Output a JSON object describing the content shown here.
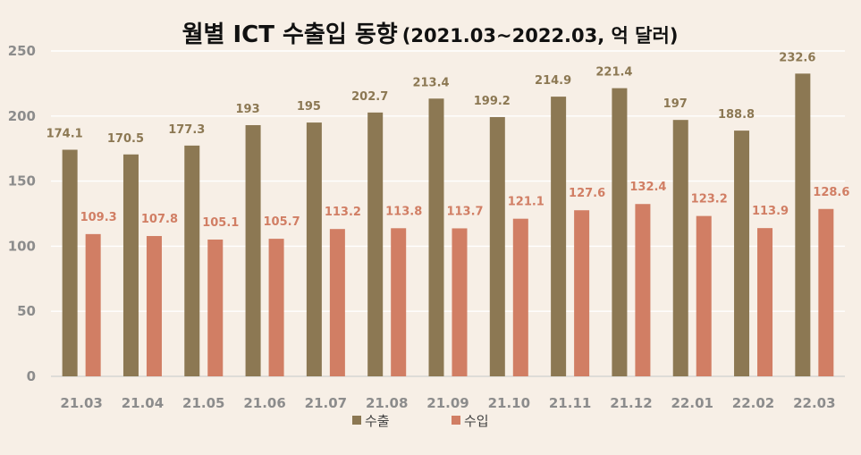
{
  "chart_data": {
    "type": "bar",
    "title": "월별 ICT 수출입 동향",
    "subtitle": "(2021.03~2022.03, 억 달러)",
    "categories": [
      "21.03",
      "21.04",
      "21.05",
      "21.06",
      "21.07",
      "21.08",
      "21.09",
      "21.10",
      "21.11",
      "21.12",
      "22.01",
      "22.02",
      "22.03"
    ],
    "series": [
      {
        "name": "수출",
        "color": "#8c7853",
        "values": [
          174.1,
          170.5,
          177.3,
          193,
          195,
          202.7,
          213.4,
          199.2,
          214.9,
          221.4,
          197,
          188.8,
          232.6
        ]
      },
      {
        "name": "수입",
        "color": "#d17e64",
        "values": [
          109.3,
          107.8,
          105.1,
          105.7,
          113.2,
          113.8,
          113.7,
          121.1,
          127.6,
          132.4,
          123.2,
          113.9,
          128.6
        ]
      }
    ],
    "ylim": [
      0,
      250
    ],
    "yticks": [
      0,
      50,
      100,
      150,
      200,
      250
    ],
    "grid": true,
    "legend": "bottom",
    "xlabel": "",
    "ylabel": ""
  }
}
